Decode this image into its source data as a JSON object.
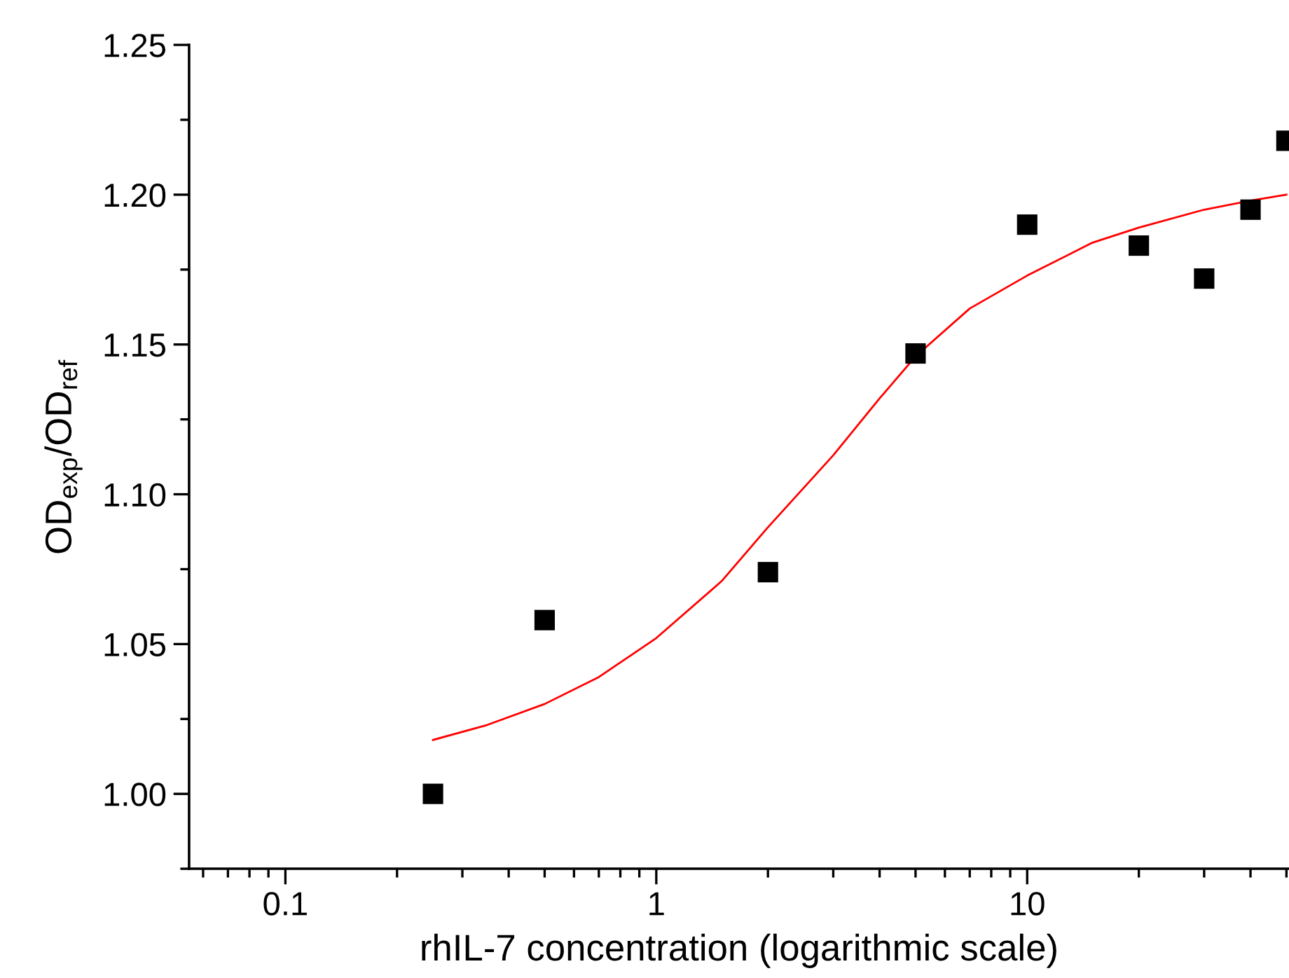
{
  "chart_data": {
    "type": "scatter",
    "xlabel": "rhIL-7 concentration (logarithmic scale)",
    "ylabel": "OD$_{exp}$/OD$_{ref}$",
    "log": "x",
    "marker": "square",
    "grid": false,
    "xlim": [
      0.055,
      50.8
    ],
    "ylim": [
      0.975,
      1.25
    ],
    "xticks": [
      {
        "value": 0.06,
        "label": null
      },
      {
        "value": 0.07,
        "label": null
      },
      {
        "value": 0.08,
        "label": null
      },
      {
        "value": 0.09,
        "label": null
      },
      0.1,
      {
        "value": 0.2,
        "label": null
      },
      {
        "value": 0.3,
        "label": null
      },
      {
        "value": 0.4,
        "label": null
      },
      {
        "value": 0.5,
        "label": null
      },
      {
        "value": 0.6,
        "label": null
      },
      {
        "value": 0.7,
        "label": null
      },
      {
        "value": 0.8,
        "label": null
      },
      {
        "value": 0.9,
        "label": null
      },
      1,
      {
        "value": 2,
        "label": null
      },
      {
        "value": 3,
        "label": null
      },
      {
        "value": 4,
        "label": null
      },
      {
        "value": 5,
        "label": null
      },
      {
        "value": 6,
        "label": null
      },
      {
        "value": 7,
        "label": null
      },
      {
        "value": 8,
        "label": null
      },
      {
        "value": 9,
        "label": null
      },
      10,
      {
        "value": 20,
        "label": null
      },
      {
        "value": 30,
        "label": null
      },
      {
        "value": 40,
        "label": null
      },
      {
        "value": 50,
        "label": null
      }
    ],
    "yticks": [
      {
        "value": 0.975,
        "label": null
      },
      {
        "value": 1.0,
        "label": "1.00"
      },
      {
        "value": 1.025,
        "label": null
      },
      {
        "value": 1.05,
        "label": "1.05"
      },
      {
        "value": 1.075,
        "label": null
      },
      {
        "value": 1.1,
        "label": "1.10"
      },
      {
        "value": 1.125,
        "label": null
      },
      {
        "value": 1.15,
        "label": "1.15"
      },
      {
        "value": 1.175,
        "label": null
      },
      {
        "value": 1.2,
        "label": "1.20"
      },
      {
        "value": 1.225,
        "label": null
      },
      {
        "value": 1.25,
        "label": "1.25"
      }
    ],
    "series": [
      {
        "color": "#000000",
        "x": [
          0.25,
          0.5,
          2,
          5,
          10,
          20,
          30,
          40,
          50
        ],
        "values": [
          1.0,
          1.058,
          1.074,
          1.147,
          1.19,
          1.183,
          1.172,
          1.195,
          1.218
        ]
      },
      {
        "type": "line",
        "color": "#ff0000",
        "marker": "none",
        "x": [
          0.25,
          0.35,
          0.5,
          0.7,
          1,
          1.5,
          2,
          3,
          4,
          5,
          7,
          10,
          15,
          20,
          30,
          40,
          50
        ],
        "values": [
          1.018,
          1.023,
          1.03,
          1.039,
          1.052,
          1.071,
          1.089,
          1.113,
          1.132,
          1.146,
          1.162,
          1.173,
          1.184,
          1.189,
          1.195,
          1.198,
          1.2
        ]
      }
    ]
  }
}
